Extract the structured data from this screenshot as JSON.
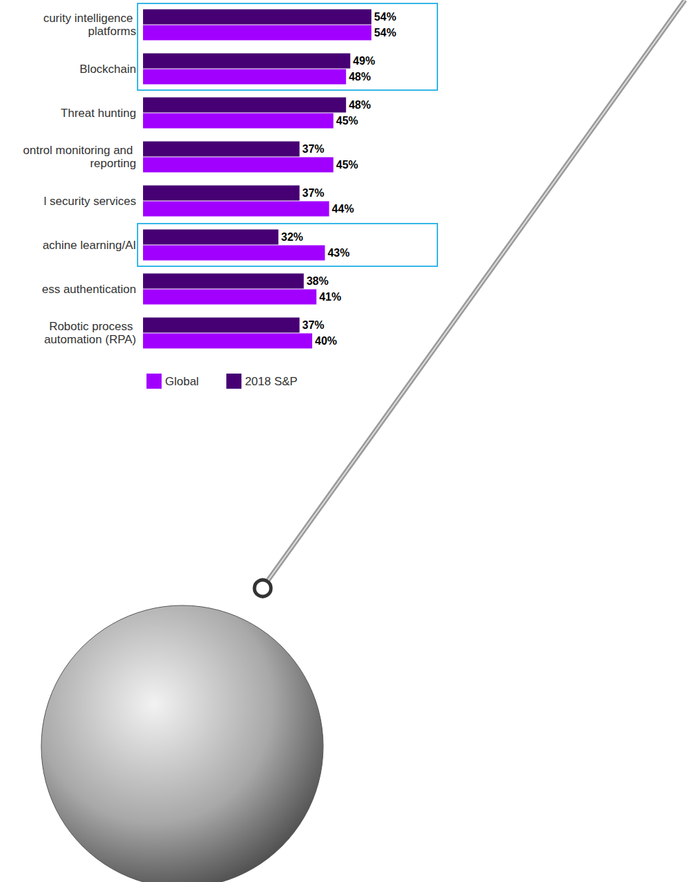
{
  "chart_data": {
    "type": "bar",
    "orientation": "horizontal",
    "categories": [
      "curity intelligence platforms",
      "Blockchain",
      "Threat hunting",
      "ontrol monitoring and reporting",
      "l security services",
      "achine learning/AI",
      "ess authentication",
      "Robotic process automation (RPA)"
    ],
    "series": [
      {
        "name": "Global",
        "color": "#a100ff",
        "values": [
          54,
          48,
          45,
          45,
          44,
          43,
          41,
          40
        ],
        "value_labels": [
          "54%",
          "48%",
          "45%",
          "45%",
          "44%",
          "43%",
          "41%",
          "40%"
        ]
      },
      {
        "name": "2018 S&P",
        "color": "#460073",
        "values": [
          54,
          49,
          48,
          37,
          37,
          32,
          38,
          37
        ],
        "value_labels": [
          "54%",
          "49%",
          "48%",
          "37%",
          "37%",
          "32%",
          "38%",
          "37%"
        ]
      }
    ],
    "xlim": [
      0,
      100
    ],
    "data_labels": true,
    "tick_labels": false,
    "grid": false,
    "legend": "bottom left"
  }
}
